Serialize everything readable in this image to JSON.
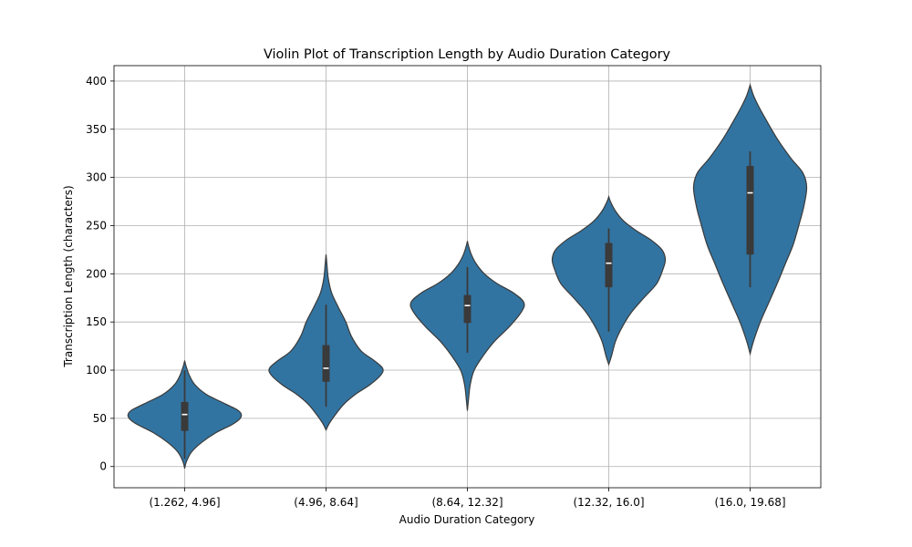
{
  "chart_data": {
    "type": "violin",
    "title": "Violin Plot of Transcription Length by Audio Duration Category",
    "xlabel": "Audio Duration Category",
    "ylabel": "Transcription Length (characters)",
    "ylim": [
      -22,
      416
    ],
    "yticks": [
      0,
      50,
      100,
      150,
      200,
      250,
      300,
      350,
      400
    ],
    "grid": true,
    "color": "#3274a1",
    "categories": [
      "(1.262, 4.96]",
      "(4.96, 8.64]",
      "(8.64, 12.32]",
      "(12.32, 16.0]",
      "(16.0, 19.68]"
    ],
    "series": [
      {
        "category": "(1.262, 4.96]",
        "min": -2,
        "max": 110,
        "whisker_low": 8,
        "q1": 37,
        "median": 54,
        "q3": 67,
        "whisker_high": 100,
        "density": [
          [
            -2,
            0
          ],
          [
            5,
            0.03
          ],
          [
            15,
            0.12
          ],
          [
            25,
            0.3
          ],
          [
            35,
            0.55
          ],
          [
            45,
            0.88
          ],
          [
            52,
            1.0
          ],
          [
            58,
            0.95
          ],
          [
            65,
            0.72
          ],
          [
            75,
            0.38
          ],
          [
            85,
            0.18
          ],
          [
            95,
            0.08
          ],
          [
            105,
            0.02
          ],
          [
            110,
            0
          ]
        ]
      },
      {
        "category": "(4.96, 8.64]",
        "min": 38,
        "max": 220,
        "whisker_low": 62,
        "q1": 88,
        "median": 102,
        "q3": 126,
        "whisker_high": 168,
        "density": [
          [
            38,
            0
          ],
          [
            45,
            0.06
          ],
          [
            55,
            0.18
          ],
          [
            65,
            0.32
          ],
          [
            75,
            0.52
          ],
          [
            85,
            0.78
          ],
          [
            95,
            0.97
          ],
          [
            102,
            1.0
          ],
          [
            110,
            0.85
          ],
          [
            120,
            0.62
          ],
          [
            135,
            0.45
          ],
          [
            150,
            0.35
          ],
          [
            165,
            0.22
          ],
          [
            180,
            0.1
          ],
          [
            195,
            0.04
          ],
          [
            210,
            0.015
          ],
          [
            220,
            0
          ]
        ]
      },
      {
        "category": "(8.64, 12.32]",
        "min": 58,
        "max": 234,
        "whisker_low": 118,
        "q1": 149,
        "median": 167,
        "q3": 178,
        "whisker_high": 207,
        "density": [
          [
            58,
            0
          ],
          [
            70,
            0.02
          ],
          [
            85,
            0.05
          ],
          [
            100,
            0.12
          ],
          [
            115,
            0.28
          ],
          [
            130,
            0.48
          ],
          [
            145,
            0.74
          ],
          [
            160,
            0.95
          ],
          [
            170,
            1.0
          ],
          [
            180,
            0.82
          ],
          [
            190,
            0.52
          ],
          [
            200,
            0.3
          ],
          [
            210,
            0.16
          ],
          [
            220,
            0.07
          ],
          [
            230,
            0.015
          ],
          [
            234,
            0
          ]
        ]
      },
      {
        "category": "(12.32, 16.0]",
        "min": 106,
        "max": 280,
        "whisker_low": 140,
        "q1": 186,
        "median": 211,
        "q3": 232,
        "whisker_high": 247,
        "density": [
          [
            106,
            0
          ],
          [
            115,
            0.05
          ],
          [
            130,
            0.12
          ],
          [
            145,
            0.24
          ],
          [
            160,
            0.4
          ],
          [
            175,
            0.62
          ],
          [
            190,
            0.85
          ],
          [
            205,
            0.96
          ],
          [
            215,
            1.0
          ],
          [
            225,
            0.94
          ],
          [
            235,
            0.75
          ],
          [
            245,
            0.48
          ],
          [
            255,
            0.26
          ],
          [
            265,
            0.12
          ],
          [
            275,
            0.03
          ],
          [
            280,
            0
          ]
        ]
      },
      {
        "category": "(16.0, 19.68]",
        "min": 117,
        "max": 396,
        "whisker_low": 186,
        "q1": 220,
        "median": 284,
        "q3": 312,
        "whisker_high": 327,
        "density": [
          [
            117,
            0
          ],
          [
            130,
            0.06
          ],
          [
            150,
            0.18
          ],
          [
            170,
            0.33
          ],
          [
            190,
            0.48
          ],
          [
            210,
            0.62
          ],
          [
            230,
            0.76
          ],
          [
            250,
            0.86
          ],
          [
            270,
            0.95
          ],
          [
            290,
            1.0
          ],
          [
            305,
            0.93
          ],
          [
            320,
            0.72
          ],
          [
            340,
            0.48
          ],
          [
            360,
            0.28
          ],
          [
            375,
            0.14
          ],
          [
            385,
            0.06
          ],
          [
            396,
            0
          ]
        ]
      }
    ]
  }
}
